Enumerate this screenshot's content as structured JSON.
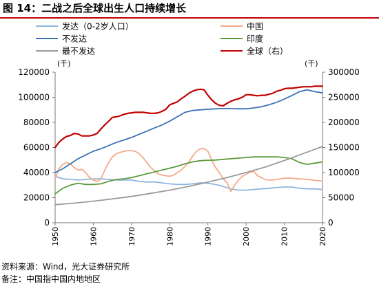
{
  "figure_title": "图 14：二战之后全球出生人口持续增长",
  "source_note": "资料来源：Wind，光大证券研究所",
  "remark_note": "备注：中国指中国内地地区",
  "chart_data": {
    "type": "line",
    "title": "",
    "left_axis": {
      "unit": "(千)",
      "ticks": [
        0,
        20000,
        40000,
        60000,
        80000,
        100000,
        120000
      ],
      "range": [
        0,
        120000
      ]
    },
    "right_axis": {
      "unit": "(千)",
      "ticks": [
        0,
        50000,
        100000,
        150000,
        200000,
        250000,
        300000
      ],
      "range": [
        0,
        300000
      ]
    },
    "x_axis": {
      "range": [
        1950,
        2020
      ],
      "ticks": [
        1950,
        1960,
        1970,
        1980,
        1990,
        2000,
        2010,
        2020
      ]
    },
    "legend_position": "top, two columns",
    "series": [
      {
        "name": "发达（0-2岁人口）",
        "color": "#8fb4de",
        "axis": "left",
        "x": [
          1950,
          1952,
          1954,
          1956,
          1958,
          1960,
          1962,
          1964,
          1966,
          1968,
          1970,
          1972,
          1974,
          1976,
          1978,
          1980,
          1982,
          1984,
          1986,
          1988,
          1990,
          1992,
          1994,
          1996,
          1998,
          2000,
          2002,
          2004,
          2006,
          2008,
          2010,
          2012,
          2014,
          2016,
          2018,
          2020
        ],
        "y": [
          37000,
          35000,
          34500,
          34000,
          34500,
          35000,
          35000,
          34500,
          34000,
          34000,
          34000,
          33000,
          32500,
          32500,
          31800,
          31000,
          30500,
          30500,
          31000,
          31800,
          31500,
          30500,
          29000,
          27000,
          26000,
          26000,
          26500,
          27000,
          27500,
          28000,
          28500,
          28500,
          27500,
          27000,
          27000,
          26500
        ]
      },
      {
        "name": "中国",
        "color": "#f3a987",
        "axis": "left",
        "x": [
          1950,
          1951,
          1952,
          1953,
          1954,
          1955,
          1956,
          1957,
          1958,
          1959,
          1960,
          1961,
          1962,
          1963,
          1964,
          1965,
          1966,
          1967,
          1968,
          1969,
          1970,
          1971,
          1972,
          1973,
          1974,
          1975,
          1976,
          1977,
          1978,
          1979,
          1980,
          1981,
          1982,
          1983,
          1984,
          1985,
          1986,
          1987,
          1988,
          1989,
          1990,
          1991,
          1992,
          1993,
          1994,
          1995,
          1996,
          1997,
          1998,
          1999,
          2000,
          2001,
          2002,
          2003,
          2004,
          2005,
          2006,
          2007,
          2008,
          2009,
          2010,
          2011,
          2012,
          2013,
          2014,
          2015,
          2016,
          2017,
          2018,
          2019,
          2020
        ],
        "y": [
          35000,
          43000,
          46500,
          48000,
          47000,
          44000,
          42000,
          42500,
          40000,
          36000,
          34000,
          33000,
          35000,
          42000,
          48000,
          52500,
          55000,
          56000,
          57000,
          57500,
          57500,
          57000,
          55000,
          52000,
          48000,
          44000,
          41500,
          39000,
          38000,
          37500,
          37000,
          38000,
          40000,
          42000,
          45000,
          48500,
          53000,
          57000,
          59000,
          59000,
          57000,
          50000,
          44000,
          40000,
          35000,
          32000,
          25000,
          30000,
          34000,
          37000,
          38500,
          40500,
          41000,
          37500,
          36000,
          34500,
          34000,
          34000,
          34500,
          35000,
          35500,
          35500,
          35500,
          35200,
          35000,
          34800,
          34500,
          34200,
          33800,
          33500,
          33000
        ]
      },
      {
        "name": "不发达",
        "color": "#3a72b5",
        "axis": "left",
        "x": [
          1950,
          1952,
          1954,
          1956,
          1958,
          1960,
          1962,
          1964,
          1966,
          1968,
          1970,
          1972,
          1974,
          1976,
          1978,
          1980,
          1982,
          1984,
          1986,
          1988,
          1990,
          1992,
          1994,
          1996,
          1998,
          2000,
          2002,
          2004,
          2006,
          2008,
          2010,
          2012,
          2014,
          2016,
          2018,
          2020
        ],
        "y": [
          40000,
          43000,
          47000,
          51000,
          54000,
          57000,
          59000,
          61500,
          64000,
          66000,
          68000,
          70500,
          73000,
          75500,
          78000,
          81000,
          84500,
          88000,
          89500,
          90000,
          90500,
          90800,
          91000,
          91000,
          90800,
          90800,
          91500,
          92500,
          94000,
          96000,
          98500,
          101500,
          104500,
          106000,
          104500,
          103500
        ]
      },
      {
        "name": "印度",
        "color": "#5b9a3a",
        "axis": "left",
        "x": [
          1950,
          1952,
          1954,
          1956,
          1958,
          1960,
          1962,
          1964,
          1966,
          1968,
          1970,
          1972,
          1974,
          1976,
          1978,
          1980,
          1982,
          1984,
          1986,
          1988,
          1990,
          1992,
          1994,
          1996,
          1998,
          2000,
          2002,
          2004,
          2006,
          2008,
          2010,
          2012,
          2014,
          2016,
          2018,
          2020
        ],
        "y": [
          23000,
          27500,
          30000,
          31500,
          30500,
          30500,
          31000,
          33000,
          34500,
          35000,
          36000,
          37500,
          39000,
          40500,
          42000,
          43500,
          45000,
          47000,
          48500,
          49500,
          49800,
          50000,
          50500,
          51000,
          51500,
          52000,
          52500,
          52500,
          52500,
          52500,
          52000,
          51000,
          48000,
          46500,
          47500,
          48500
        ]
      },
      {
        "name": "最不发达",
        "color": "#9a9a9a",
        "axis": "right",
        "x": [
          1950,
          1955,
          1960,
          1965,
          1970,
          1975,
          1980,
          1985,
          1990,
          1995,
          2000,
          2005,
          2010,
          2015,
          2020
        ],
        "y": [
          36000,
          39000,
          43000,
          47500,
          52500,
          58500,
          65000,
          72500,
          81000,
          90000,
          100000,
          111000,
          124000,
          138000,
          152000
        ]
      },
      {
        "name": "全球（右）",
        "color": "#c00000",
        "axis": "right",
        "x": [
          1950,
          1951,
          1952,
          1953,
          1954,
          1955,
          1956,
          1957,
          1958,
          1959,
          1960,
          1961,
          1962,
          1963,
          1964,
          1965,
          1966,
          1967,
          1968,
          1969,
          1970,
          1971,
          1972,
          1973,
          1974,
          1975,
          1976,
          1977,
          1978,
          1979,
          1980,
          1981,
          1982,
          1983,
          1984,
          1985,
          1986,
          1987,
          1988,
          1989,
          1990,
          1991,
          1992,
          1993,
          1994,
          1995,
          1996,
          1997,
          1998,
          1999,
          2000,
          2001,
          2002,
          2003,
          2004,
          2005,
          2006,
          2007,
          2008,
          2009,
          2010,
          2011,
          2012,
          2013,
          2014,
          2015,
          2016,
          2017,
          2018,
          2019,
          2020
        ],
        "y": [
          150000,
          160000,
          167000,
          172000,
          174000,
          178000,
          177000,
          173000,
          173000,
          173000,
          175000,
          178000,
          187000,
          195000,
          202000,
          210000,
          211000,
          213000,
          216000,
          218000,
          219000,
          220000,
          220000,
          220000,
          219000,
          218000,
          218000,
          219000,
          222000,
          226000,
          235000,
          238000,
          241000,
          247000,
          252000,
          258000,
          262000,
          265000,
          266000,
          265000,
          254000,
          245000,
          238000,
          234000,
          233000,
          238000,
          242000,
          245000,
          247000,
          250000,
          255000,
          255000,
          254000,
          253000,
          254000,
          254000,
          256000,
          258000,
          262000,
          264000,
          267000,
          268000,
          268000,
          269000,
          270000,
          271000,
          271000,
          271000,
          272000,
          272000,
          272000
        ]
      }
    ]
  }
}
